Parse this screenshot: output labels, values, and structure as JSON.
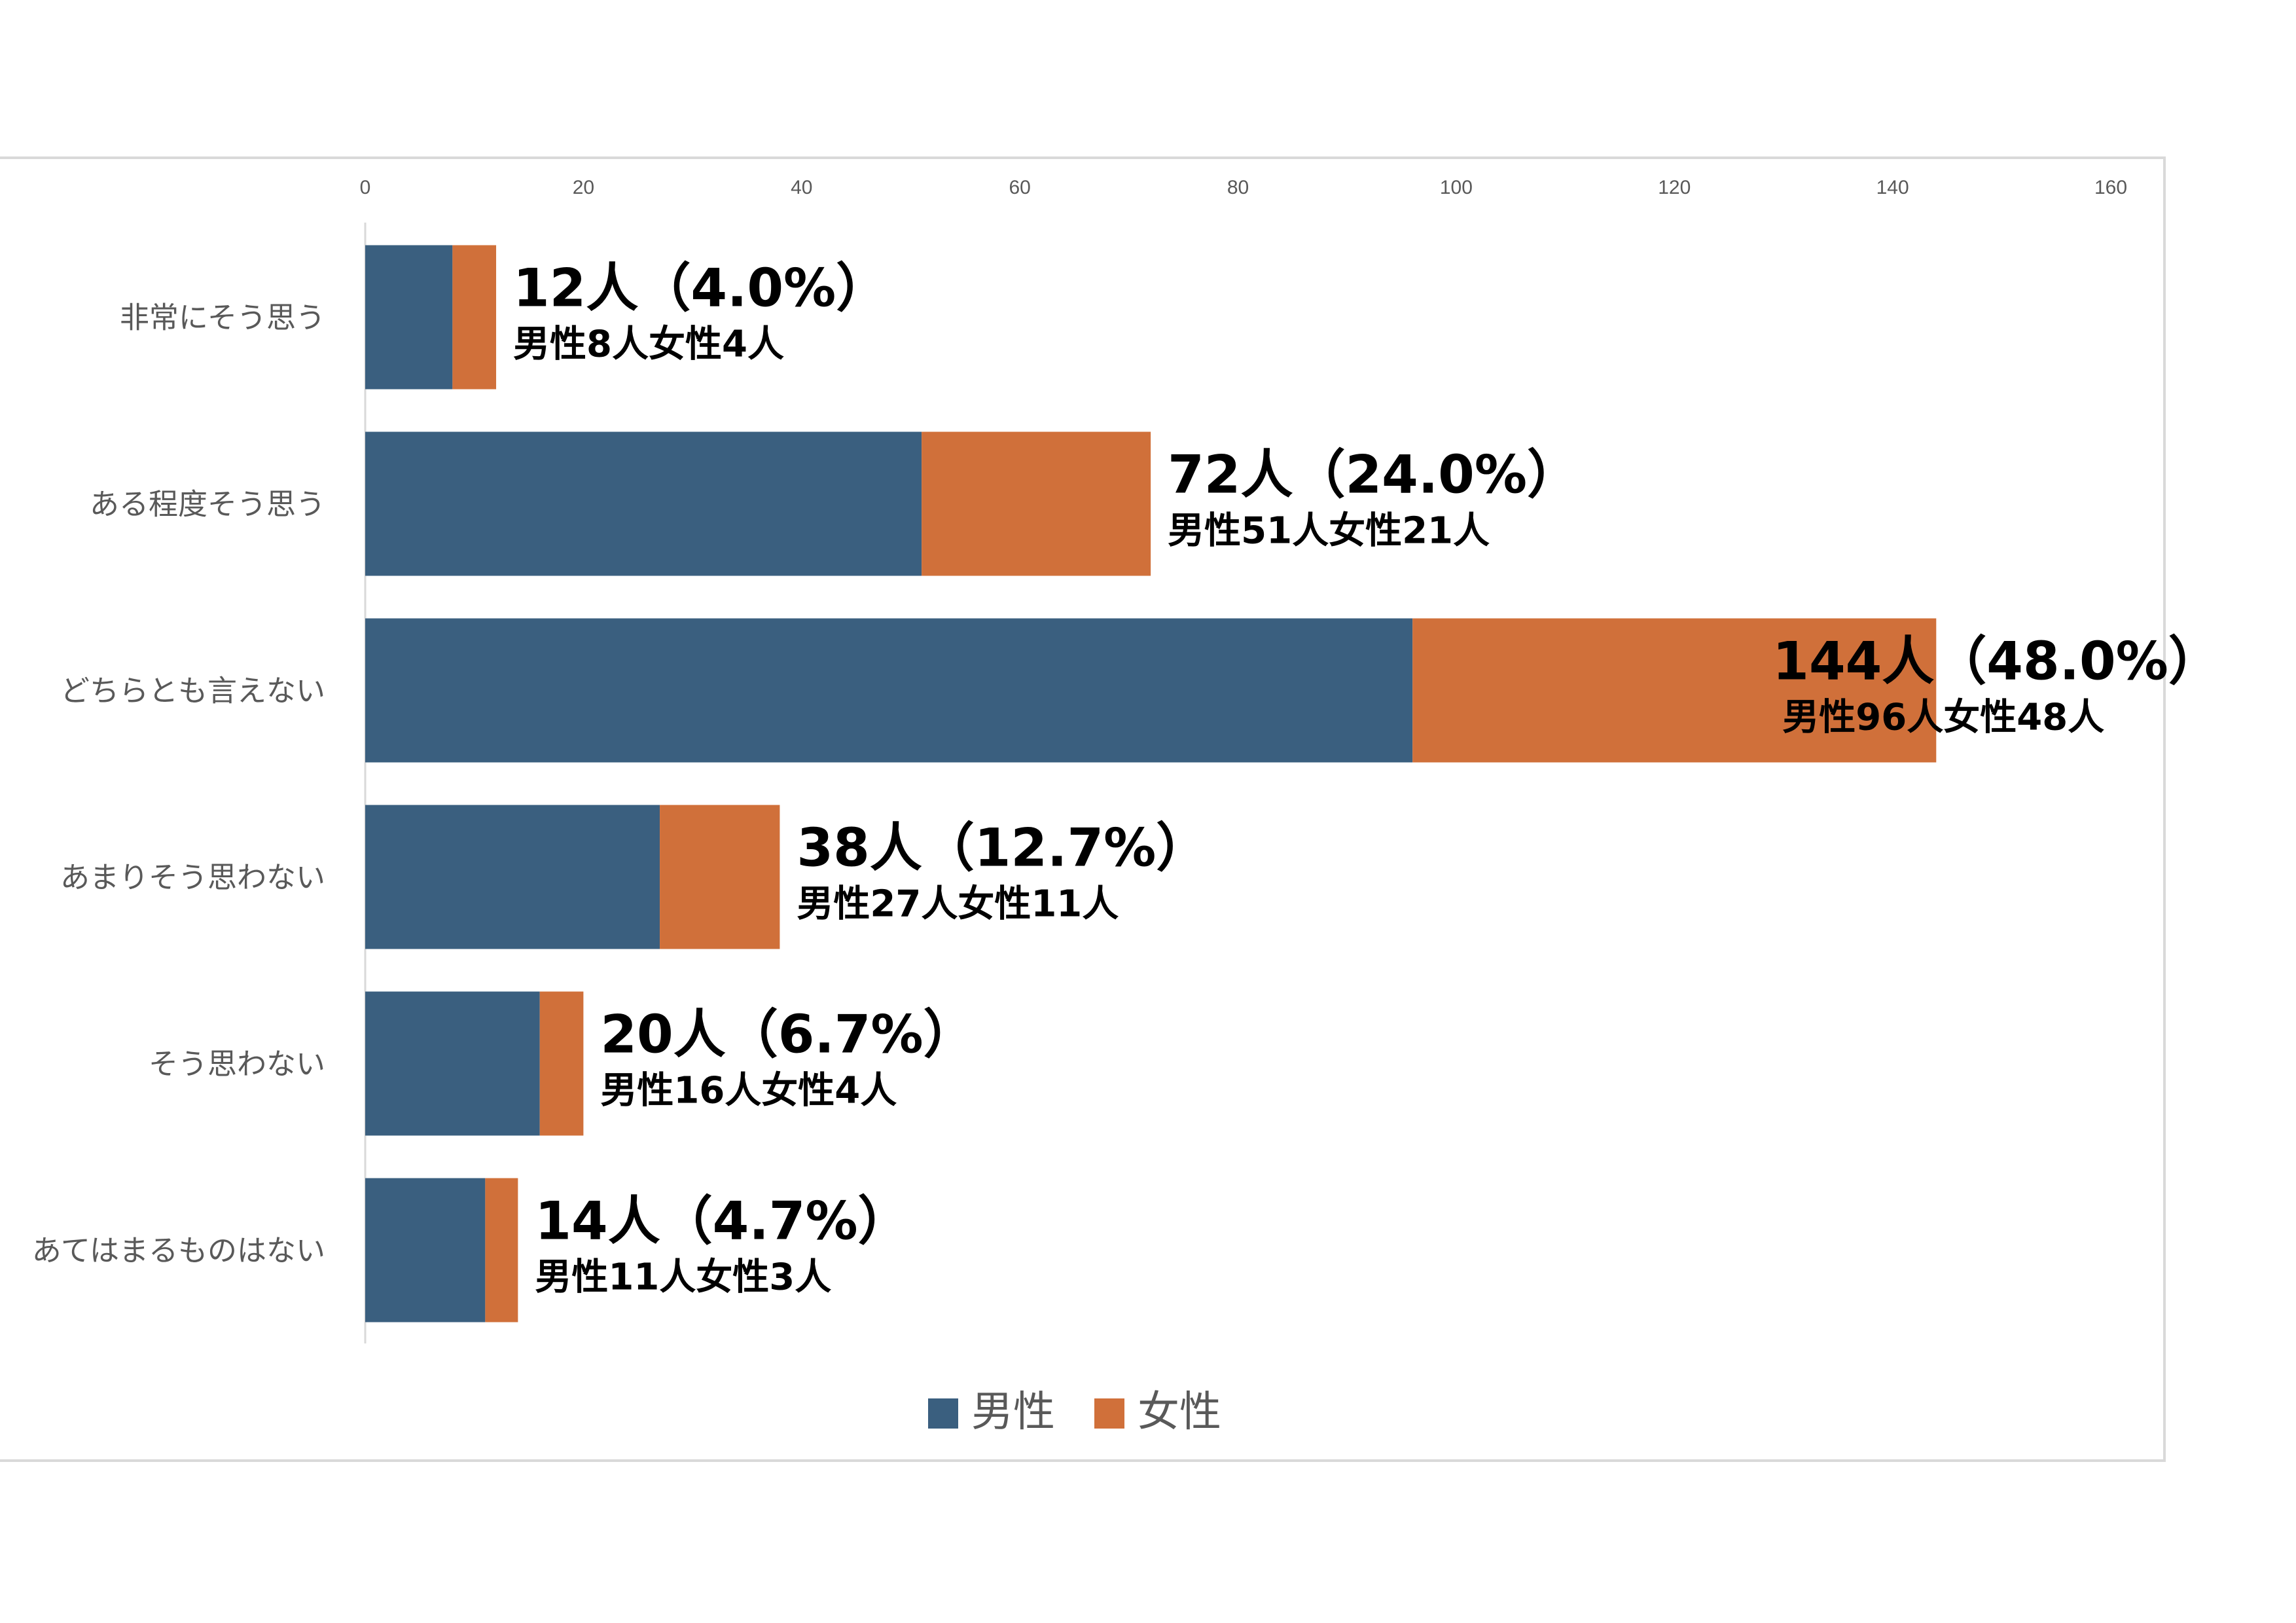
{
  "chart_data": {
    "type": "bar",
    "orientation": "horizontal",
    "stacked": true,
    "categories": [
      "非常にそう思う",
      "ある程度そう思う",
      "どちらとも言えない",
      "あまりそう思わない",
      "そう思わない",
      "あてはまるものはない"
    ],
    "series": [
      {
        "name": "男性",
        "color": "#3A5F7F",
        "values": [
          8,
          51,
          96,
          27,
          16,
          11
        ]
      },
      {
        "name": "女性",
        "color": "#D0703A",
        "values": [
          4,
          21,
          48,
          11,
          4,
          3
        ]
      }
    ],
    "data_labels": [
      {
        "total": "12人（4.0%）",
        "split": "男性8人女性4人"
      },
      {
        "total": "72人（24.0%）",
        "split": "男性51人女性21人"
      },
      {
        "total": "144人（48.0%）",
        "split": "男性96人女性48人"
      },
      {
        "total": "38人（12.7%）",
        "split": "男性27人女性11人"
      },
      {
        "total": "20人（6.7%）",
        "split": "男性16人女性4人"
      },
      {
        "total": "14人（4.7%）",
        "split": "男性11人女性3人"
      }
    ],
    "xlim": [
      0,
      160
    ],
    "xticks": [
      0,
      20,
      40,
      60,
      80,
      100,
      120,
      140,
      160
    ],
    "axis_position": "top",
    "grid": false,
    "legend_position": "bottom"
  }
}
